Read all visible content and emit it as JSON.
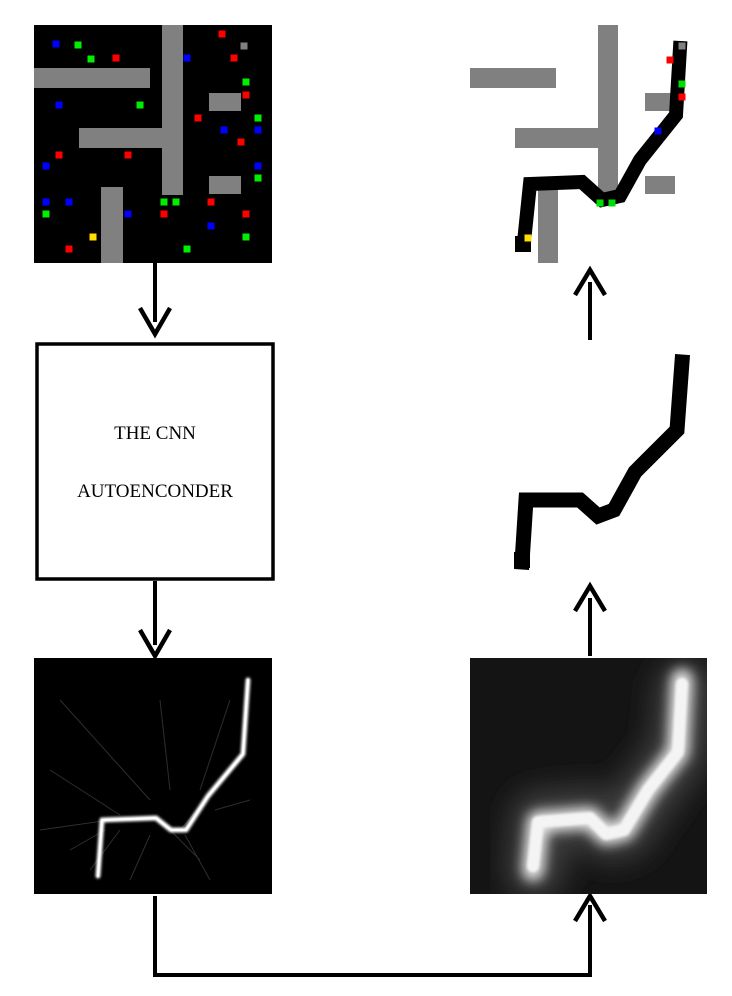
{
  "diagram": {
    "box": {
      "line1": "THE CNN",
      "line2": "AUTOENCONDER"
    },
    "panels": {
      "input_map": {
        "colors": {
          "background": "#000000",
          "obstacle": "#808080",
          "red": "#ff0000",
          "green": "#00ee00",
          "blue": "#0000ff",
          "yellow": "#ffdd00"
        }
      },
      "raw_output": {
        "colors": {
          "background": "#000000",
          "path": "#ffffff"
        }
      },
      "blurred_output": {
        "colors": {
          "background": "#0a0a0a",
          "path": "#f0f0f0"
        }
      },
      "binarized_path": {
        "colors": {
          "background": "#ffffff",
          "path": "#000000"
        }
      },
      "overlay_result": {
        "colors": {
          "background": "#ffffff",
          "obstacle": "#808080",
          "path": "#000000",
          "green": "#00dd00",
          "red": "#ff0000",
          "blue": "#0000ff",
          "yellow": "#ffdd00"
        }
      }
    },
    "arrows": {
      "color": "#000000"
    }
  }
}
